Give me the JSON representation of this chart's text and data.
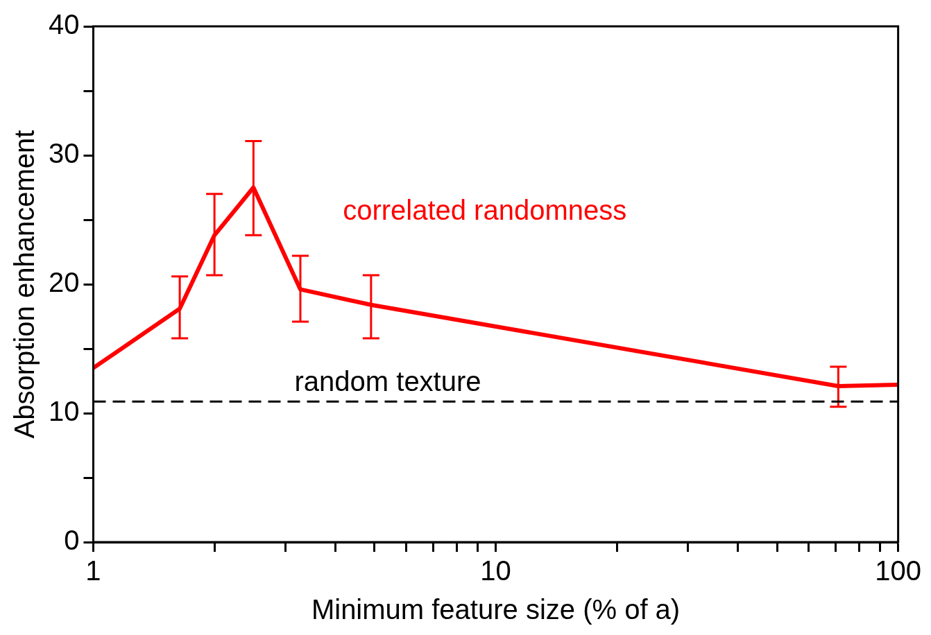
{
  "chart_data": {
    "type": "line",
    "xlabel": "Minimum feature size (% of a)",
    "ylabel": "Absorption enhancement",
    "log": "x",
    "x": [
      1,
      1.64,
      2,
      2.5,
      3.27,
      4.9,
      71,
      100
    ],
    "series": [
      {
        "color": "#ff0000",
        "values": [
          13.5,
          18.1,
          23.8,
          27.5,
          19.6,
          18.4,
          12.1,
          12.2
        ],
        "errors": [
          null,
          [
            15.8,
            20.6
          ],
          [
            20.7,
            27.0
          ],
          [
            23.8,
            31.1
          ],
          [
            17.1,
            22.2
          ],
          [
            15.8,
            20.7
          ],
          [
            10.5,
            13.6
          ],
          null
        ]
      }
    ],
    "xlim": [
      1,
      100
    ],
    "ylim": [
      0,
      40
    ],
    "xticks": [
      1,
      {
        "value": 2,
        "label": null
      },
      {
        "value": 3,
        "label": null
      },
      {
        "value": 4,
        "label": null
      },
      {
        "value": 5,
        "label": null
      },
      {
        "value": 6,
        "label": null
      },
      {
        "value": 7,
        "label": null
      },
      {
        "value": 8,
        "label": null
      },
      {
        "value": 9,
        "label": null
      },
      10,
      {
        "value": 20,
        "label": null
      },
      {
        "value": 30,
        "label": null
      },
      {
        "value": 40,
        "label": null
      },
      {
        "value": 50,
        "label": null
      },
      {
        "value": 60,
        "label": null
      },
      {
        "value": 70,
        "label": null
      },
      {
        "value": 80,
        "label": null
      },
      {
        "value": 90,
        "label": null
      },
      100
    ],
    "yticks": [
      0,
      {
        "value": 5,
        "label": null
      },
      10,
      {
        "value": 15,
        "label": null
      },
      20,
      {
        "value": 25,
        "label": null
      },
      30,
      {
        "value": 35,
        "label": null
      },
      40
    ],
    "ref_lines": [
      {
        "axis": "y",
        "value": 10.9,
        "label": "random texture",
        "color": "#000000",
        "line_style": "dashed"
      }
    ],
    "annotations": [
      "correlated randomness"
    ],
    "grid": false,
    "legend": false,
    "marker": "none",
    "line_style": "solid"
  }
}
